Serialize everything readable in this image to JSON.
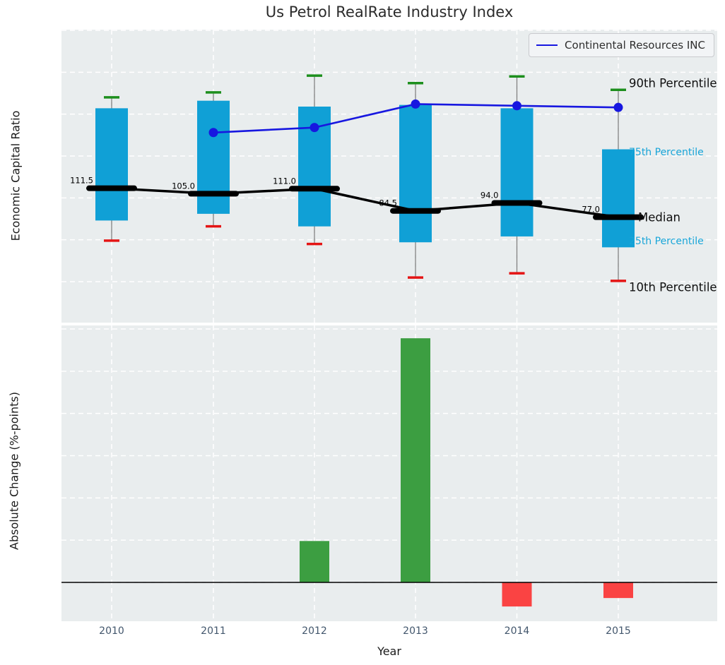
{
  "title": "Us Petrol RealRate Industry Index",
  "chart_data": [
    {
      "type": "box-whisker+line",
      "title": "Us Petrol RealRate Industry Index",
      "ylabel": "Economic Capital Ratio",
      "categories": [
        "2010",
        "2011",
        "2012",
        "2013",
        "2014",
        "2015"
      ],
      "yticks": [
        0,
        50,
        100,
        150,
        200,
        250,
        300
      ],
      "ylim": [
        -48,
        301
      ],
      "grid": true,
      "legend_position": "upper right",
      "legend_label": "Continental Resources INC",
      "series": {
        "p90": [
          220,
          226,
          246,
          237,
          245,
          229
        ],
        "p75": [
          207,
          216,
          209,
          211,
          207,
          158
        ],
        "median": [
          111.5,
          105.0,
          111.0,
          84.5,
          94.0,
          77.0
        ],
        "p25": [
          73,
          81,
          66,
          47,
          54,
          41
        ],
        "p10": [
          49,
          66,
          45,
          5,
          10,
          1
        ],
        "company_line": {
          "name": "Continental Resources INC",
          "values": [
            null,
            178,
            184,
            212,
            210,
            208
          ]
        }
      },
      "median_labels": [
        "111.5",
        "105.0",
        "111.0",
        "84.5",
        "94.0",
        "77.0"
      ],
      "annotations": {
        "p90": "90th Percentile",
        "p75": "75th Percentile",
        "median": "Median",
        "p25": "25th Percentile",
        "p10": "10th Percentile"
      },
      "colors": {
        "box": "#10a0d6",
        "median": "#000000",
        "whisker": "#808080",
        "cap_high": "#1d8f1d",
        "cap_low": "#e41414",
        "company_line": "#1717e0",
        "annotation_cyan": "#18a5d8"
      }
    },
    {
      "type": "bar",
      "ylabel": "Absolute Change (%-points)",
      "xlabel": "Year",
      "categories": [
        "2010",
        "2011",
        "2012",
        "2013",
        "2014",
        "2015"
      ],
      "values": [
        0,
        0,
        490,
        2890,
        -285,
        -185
      ],
      "yticks": [
        0,
        500,
        1000,
        1500,
        2000,
        2500,
        3000
      ],
      "ylim": [
        -460,
        3040
      ],
      "grid": true,
      "colors": {
        "positive": "#3c9e41",
        "negative": "#fa4343",
        "zero_line": "#000000"
      }
    }
  ]
}
